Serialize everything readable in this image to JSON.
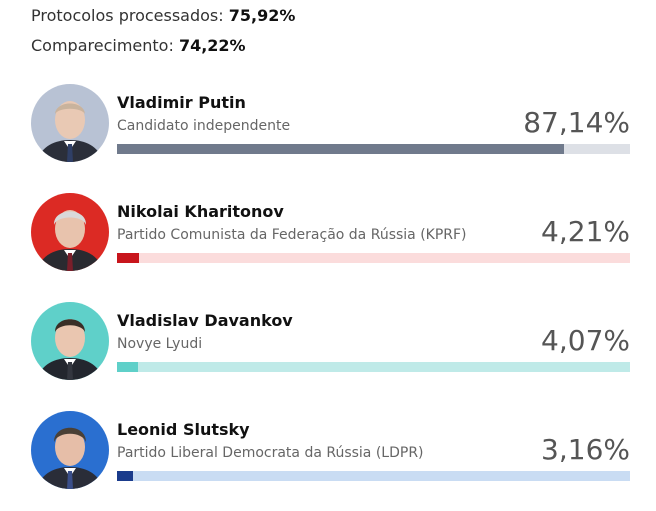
{
  "stats": {
    "processed_label": "Protocolos processados:",
    "processed_value": "75,92%",
    "turnout_label": "Comparecimento:",
    "turnout_value": "74,22%"
  },
  "candidates": [
    {
      "name": "Vladimir Putin",
      "party": "Candidato independente",
      "percent_label": "87,14%",
      "percent": 87.14,
      "bar_color": "#707a8c",
      "track_color": "#dde0e6",
      "avatar_bg": "#b8c2d4"
    },
    {
      "name": "Nikolai Kharitonov",
      "party": "Partido Comunista da Federação da Rússia (KPRF)",
      "percent_label": "4,21%",
      "percent": 4.21,
      "bar_color": "#c8151c",
      "track_color": "#fbdcdc",
      "avatar_bg": "#dc2a24"
    },
    {
      "name": "Vladislav Davankov",
      "party": "Novye Lyudi",
      "percent_label": "4,07%",
      "percent": 4.07,
      "bar_color": "#5fd0c9",
      "track_color": "#bfeae8",
      "avatar_bg": "#5fd0c9"
    },
    {
      "name": "Leonid Slutsky",
      "party": "Partido Liberal Democrata da Rússia (LDPR)",
      "percent_label": "3,16%",
      "percent": 3.16,
      "bar_color": "#1a3b8c",
      "track_color": "#c9dcf3",
      "avatar_bg": "#2a6fd0"
    }
  ]
}
